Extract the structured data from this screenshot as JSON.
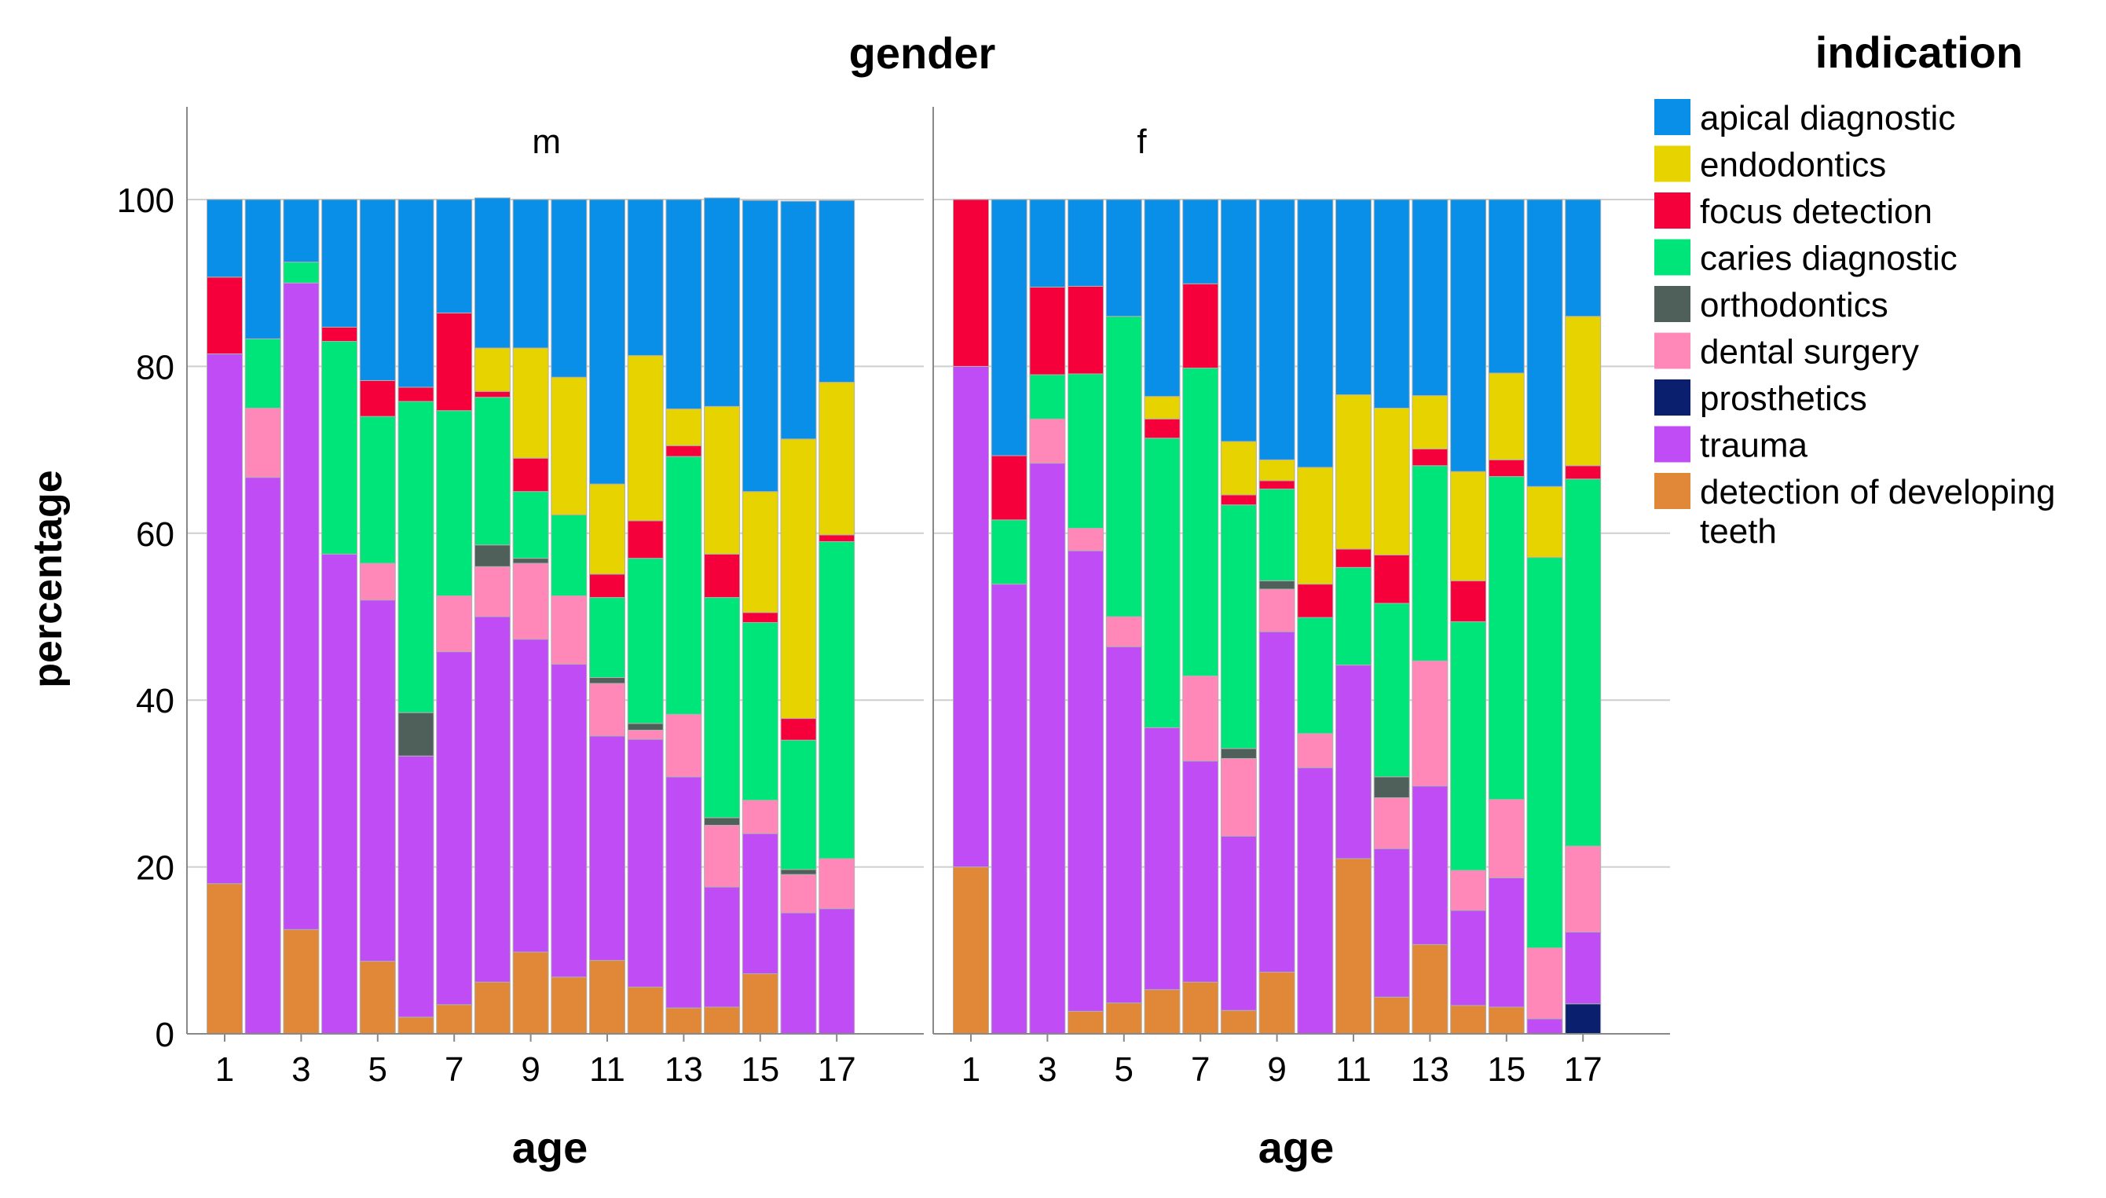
{
  "chart_data": {
    "type": "bar",
    "stacked": true,
    "title": "gender",
    "xlabel": "age",
    "ylabel": "percentage",
    "ylim": [
      0,
      110
    ],
    "yticks": [
      "0",
      "20",
      "40",
      "60",
      "80",
      "100"
    ],
    "xticks": [
      "1",
      "3",
      "5",
      "7",
      "9",
      "11",
      "13",
      "15",
      "17"
    ],
    "categories": [
      "1",
      "2",
      "3",
      "4",
      "5",
      "6",
      "7",
      "8",
      "9",
      "10",
      "11",
      "12",
      "13",
      "14",
      "15",
      "16",
      "17"
    ],
    "legend": {
      "title": "indication",
      "position": "right",
      "items": [
        {
          "label": "apical diagnostic",
          "color": "#0a8fe8"
        },
        {
          "label": "endodontics",
          "color": "#e6d300"
        },
        {
          "label": "focus detection",
          "color": "#f5003a"
        },
        {
          "label": "caries diagnostic",
          "color": "#00e57a"
        },
        {
          "label": "orthodontics",
          "color": "#4f5f5a"
        },
        {
          "label": "dental surgery",
          "color": "#ff88b8"
        },
        {
          "label": "prosthetics",
          "color": "#0a1f6e"
        },
        {
          "label": "trauma",
          "color": "#c04cf5"
        },
        {
          "label": "detection of developing teeth",
          "color": "#e08838"
        }
      ]
    },
    "stack_order": [
      "detection of developing teeth",
      "prosthetics",
      "trauma",
      "dental surgery",
      "orthodontics",
      "caries diagnostic",
      "focus detection",
      "endodontics",
      "apical diagnostic"
    ],
    "panels": [
      {
        "label": "m",
        "series": [
          {
            "name": "detection of developing teeth",
            "values": [
              18,
              0,
              12.5,
              0,
              8.7,
              2,
              3.5,
              6.2,
              9.8,
              6.8,
              8.8,
              5.6,
              3.1,
              3.2,
              7.2,
              0,
              0
            ]
          },
          {
            "name": "prosthetics",
            "values": [
              0,
              0,
              0,
              0,
              0,
              0,
              0,
              0,
              0,
              0,
              0,
              0,
              0,
              0,
              0,
              0,
              0
            ]
          },
          {
            "name": "trauma",
            "values": [
              63.5,
              66.7,
              77.5,
              57.5,
              43.3,
              31.3,
              42.3,
              43.8,
              37.5,
              37.5,
              26.9,
              29.7,
              27.7,
              14.4,
              16.8,
              14.5,
              15
            ]
          },
          {
            "name": "dental surgery",
            "values": [
              0,
              8.3,
              0,
              0,
              4.4,
              0,
              6.7,
              6,
              9.1,
              8.2,
              6.3,
              1.1,
              7.5,
              7.4,
              4,
              4.6,
              6
            ]
          },
          {
            "name": "orthodontics",
            "values": [
              0,
              0,
              0,
              0,
              0,
              5.2,
              0,
              2.6,
              0.6,
              0,
              0.7,
              0.8,
              0,
              0.9,
              0,
              0.6,
              0
            ]
          },
          {
            "name": "caries diagnostic",
            "values": [
              0,
              8.3,
              2.5,
              25.5,
              17.6,
              37.3,
              22.2,
              17.7,
              8,
              9.7,
              9.6,
              19.8,
              30.9,
              26.4,
              21.3,
              15.5,
              38
            ]
          },
          {
            "name": "focus detection",
            "values": [
              9.2,
              0,
              0,
              1.7,
              4.3,
              1.7,
              11.7,
              0.7,
              4,
              0,
              2.8,
              4.5,
              1.3,
              5.2,
              1.2,
              2.6,
              0.8
            ]
          },
          {
            "name": "endodontics",
            "values": [
              0,
              0,
              0,
              0,
              0,
              0,
              0,
              5.2,
              13.2,
              16.5,
              10.8,
              19.8,
              4.4,
              17.7,
              14.5,
              33.5,
              18.3
            ]
          },
          {
            "name": "apical diagnostic",
            "values": [
              9.3,
              16.7,
              7.5,
              15.3,
              21.7,
              22.5,
              13.6,
              18,
              17.8,
              21.3,
              34.1,
              18.7,
              25.1,
              25,
              34.9,
              28.5,
              21.8
            ]
          }
        ]
      },
      {
        "label": "f",
        "series": [
          {
            "name": "detection of developing teeth",
            "values": [
              20,
              0,
              0,
              2.7,
              3.7,
              5.3,
              6.2,
              2.8,
              7.4,
              0,
              21,
              4.4,
              10.7,
              3.4,
              3.2,
              0,
              0
            ]
          },
          {
            "name": "prosthetics",
            "values": [
              0,
              0,
              0,
              0,
              0,
              0,
              0,
              0,
              0,
              0,
              0,
              0,
              0,
              0,
              0,
              0,
              3.6
            ]
          },
          {
            "name": "trauma",
            "values": [
              60,
              53.9,
              68.4,
              55.2,
              42.7,
              31.4,
              26.5,
              20.9,
              40.8,
              31.9,
              23.2,
              17.8,
              19,
              11.4,
              15.5,
              1.8,
              8.6
            ]
          },
          {
            "name": "dental surgery",
            "values": [
              0,
              0,
              5.3,
              2.7,
              3.6,
              0,
              10.2,
              9.3,
              5.1,
              4.1,
              0,
              6.1,
              15,
              4.8,
              9.4,
              8.5,
              10.3
            ]
          },
          {
            "name": "orthodontics",
            "values": [
              0,
              0,
              0,
              0,
              0,
              0,
              0,
              1.2,
              1,
              0,
              0,
              2.5,
              0,
              0,
              0,
              0,
              0
            ]
          },
          {
            "name": "caries diagnostic",
            "values": [
              0,
              7.7,
              5.3,
              18.5,
              36,
              34.7,
              36.9,
              29.2,
              11,
              13.9,
              11.7,
              20.8,
              23.4,
              29.8,
              38.7,
              46.8,
              44
            ]
          },
          {
            "name": "focus detection",
            "values": [
              20,
              7.7,
              10.5,
              10.5,
              0,
              2.3,
              10.1,
              1.2,
              1,
              4,
              2.2,
              5.8,
              2,
              4.9,
              2,
              0,
              1.6
            ]
          },
          {
            "name": "endodontics",
            "values": [
              0,
              0,
              0,
              0,
              0,
              2.7,
              0,
              6.4,
              2.5,
              14,
              18.5,
              17.6,
              6.4,
              13.1,
              10.4,
              8.5,
              17.9
            ]
          },
          {
            "name": "apical diagnostic",
            "values": [
              0,
              30.7,
              10.5,
              10.4,
              14,
              23.6,
              10.1,
              29,
              31.2,
              32.1,
              23.4,
              25,
              23.5,
              32.6,
              20.8,
              34.4,
              14
            ]
          }
        ]
      }
    ]
  }
}
